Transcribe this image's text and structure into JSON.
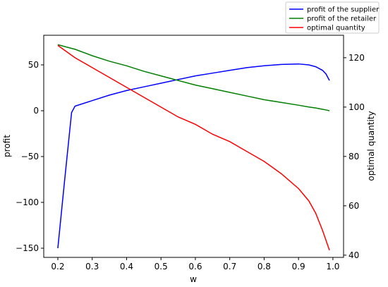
{
  "chart_data": {
    "type": "line",
    "xlabel": "w",
    "ylabel": "profit",
    "y2label": "optimal quantity",
    "x": [
      0.2,
      0.22,
      0.24,
      0.25,
      0.3,
      0.35,
      0.4,
      0.45,
      0.5,
      0.55,
      0.6,
      0.65,
      0.7,
      0.75,
      0.8,
      0.85,
      0.9,
      0.93,
      0.95,
      0.97,
      0.98,
      0.99
    ],
    "series": [
      {
        "name": "profit of the supplier",
        "color": "#0000ff",
        "values": [
          -150,
          -75,
          -2,
          5,
          11,
          17,
          22,
          26,
          30,
          34,
          38,
          41,
          44,
          47,
          49,
          50.5,
          51,
          50,
          48,
          44,
          40,
          33
        ]
      },
      {
        "name": "profit of the retailer",
        "color": "#008000",
        "values": [
          72,
          70,
          68,
          67,
          60,
          54,
          49,
          43,
          38,
          33,
          28,
          24,
          20,
          16,
          12,
          9,
          6,
          4,
          3,
          1.5,
          0.8,
          0
        ]
      },
      {
        "name": "optimal quantity",
        "color": "#ff0000",
        "axis": "y2",
        "values": [
          125,
          123,
          121,
          120,
          116,
          112,
          108,
          104,
          100,
          96,
          93,
          89,
          86,
          82,
          78,
          73,
          67,
          62,
          57,
          50,
          46,
          42
        ]
      }
    ],
    "xlim": [
      0.159,
      1.031
    ],
    "xticks": [
      0.2,
      0.3,
      0.4,
      0.5,
      0.6,
      0.7,
      0.8,
      0.9,
      {
        "value": 1.0,
        "label": "1.0"
      }
    ],
    "ylim": [
      -160,
      82.3
    ],
    "yticks": [
      {
        "value": -150,
        "label": "−150"
      },
      {
        "value": -100,
        "label": "−100"
      },
      {
        "value": -50,
        "label": "−50"
      },
      0,
      50
    ],
    "y2lim": [
      39.1,
      129.1
    ],
    "y2ticks": [
      40,
      60,
      80,
      100,
      120
    ],
    "legend": "upper right"
  }
}
